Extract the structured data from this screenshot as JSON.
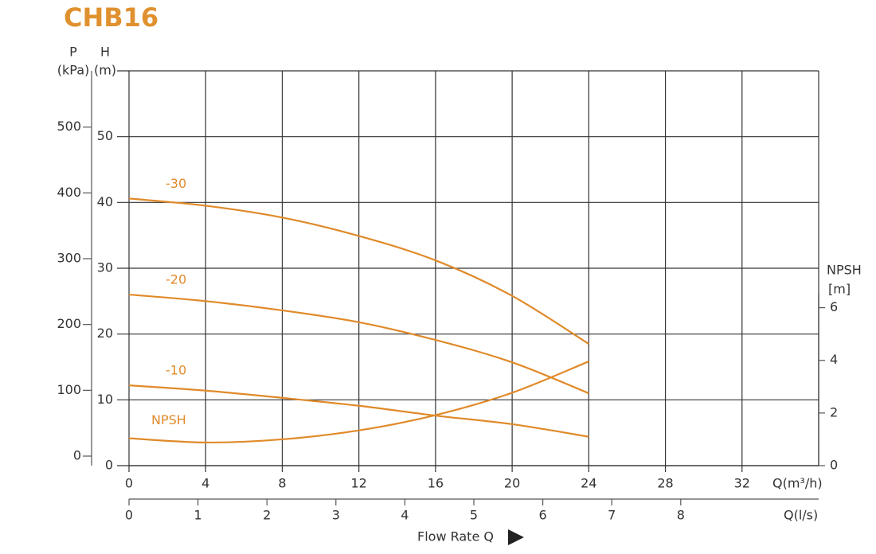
{
  "chart_data": {
    "type": "line",
    "title": "CHB16",
    "x": [
      0,
      4,
      8,
      12,
      16,
      20,
      24
    ],
    "xlim": [
      0,
      36
    ],
    "xticks": [
      0,
      4,
      8,
      12,
      16,
      20,
      24,
      28,
      32
    ],
    "xlabel": "Q(m³/h)",
    "x2lim": [
      0,
      10
    ],
    "x2ticks": [
      0,
      1,
      2,
      3,
      4,
      5,
      6,
      7,
      8
    ],
    "x2label": "Q(l/s)",
    "axis_title": "Flow Rate Q",
    "ylim": [
      0,
      60
    ],
    "yticks": [
      0,
      10,
      20,
      30,
      40,
      50
    ],
    "ylabel": "H",
    "yunit": "(m)",
    "plim": [
      0,
      600
    ],
    "pticks": [
      0,
      100,
      200,
      300,
      400,
      500
    ],
    "plabel": "P",
    "punit": "(kPa)",
    "y2lim": [
      0,
      15
    ],
    "y2ticks": [
      0,
      2,
      4,
      6
    ],
    "y2label": "NPSH",
    "y2unit": "[m]",
    "grid": true,
    "series": [
      {
        "name": "-30",
        "color": "#e08a2a",
        "values": [
          40.6,
          39.5,
          37.7,
          34.9,
          31.2,
          25.8,
          18.5
        ]
      },
      {
        "name": "-20",
        "color": "#e08a2a",
        "values": [
          26.0,
          25.0,
          23.6,
          21.8,
          19.1,
          15.7,
          11.0
        ]
      },
      {
        "name": "-10",
        "color": "#e08a2a",
        "values": [
          12.2,
          11.4,
          10.3,
          9.1,
          7.6,
          6.3,
          4.4
        ]
      },
      {
        "name": "NPSH",
        "color": "#e08a2a",
        "axis": "y2",
        "values": [
          1.04,
          0.88,
          1.0,
          1.34,
          1.92,
          2.77,
          3.96
        ]
      }
    ]
  }
}
